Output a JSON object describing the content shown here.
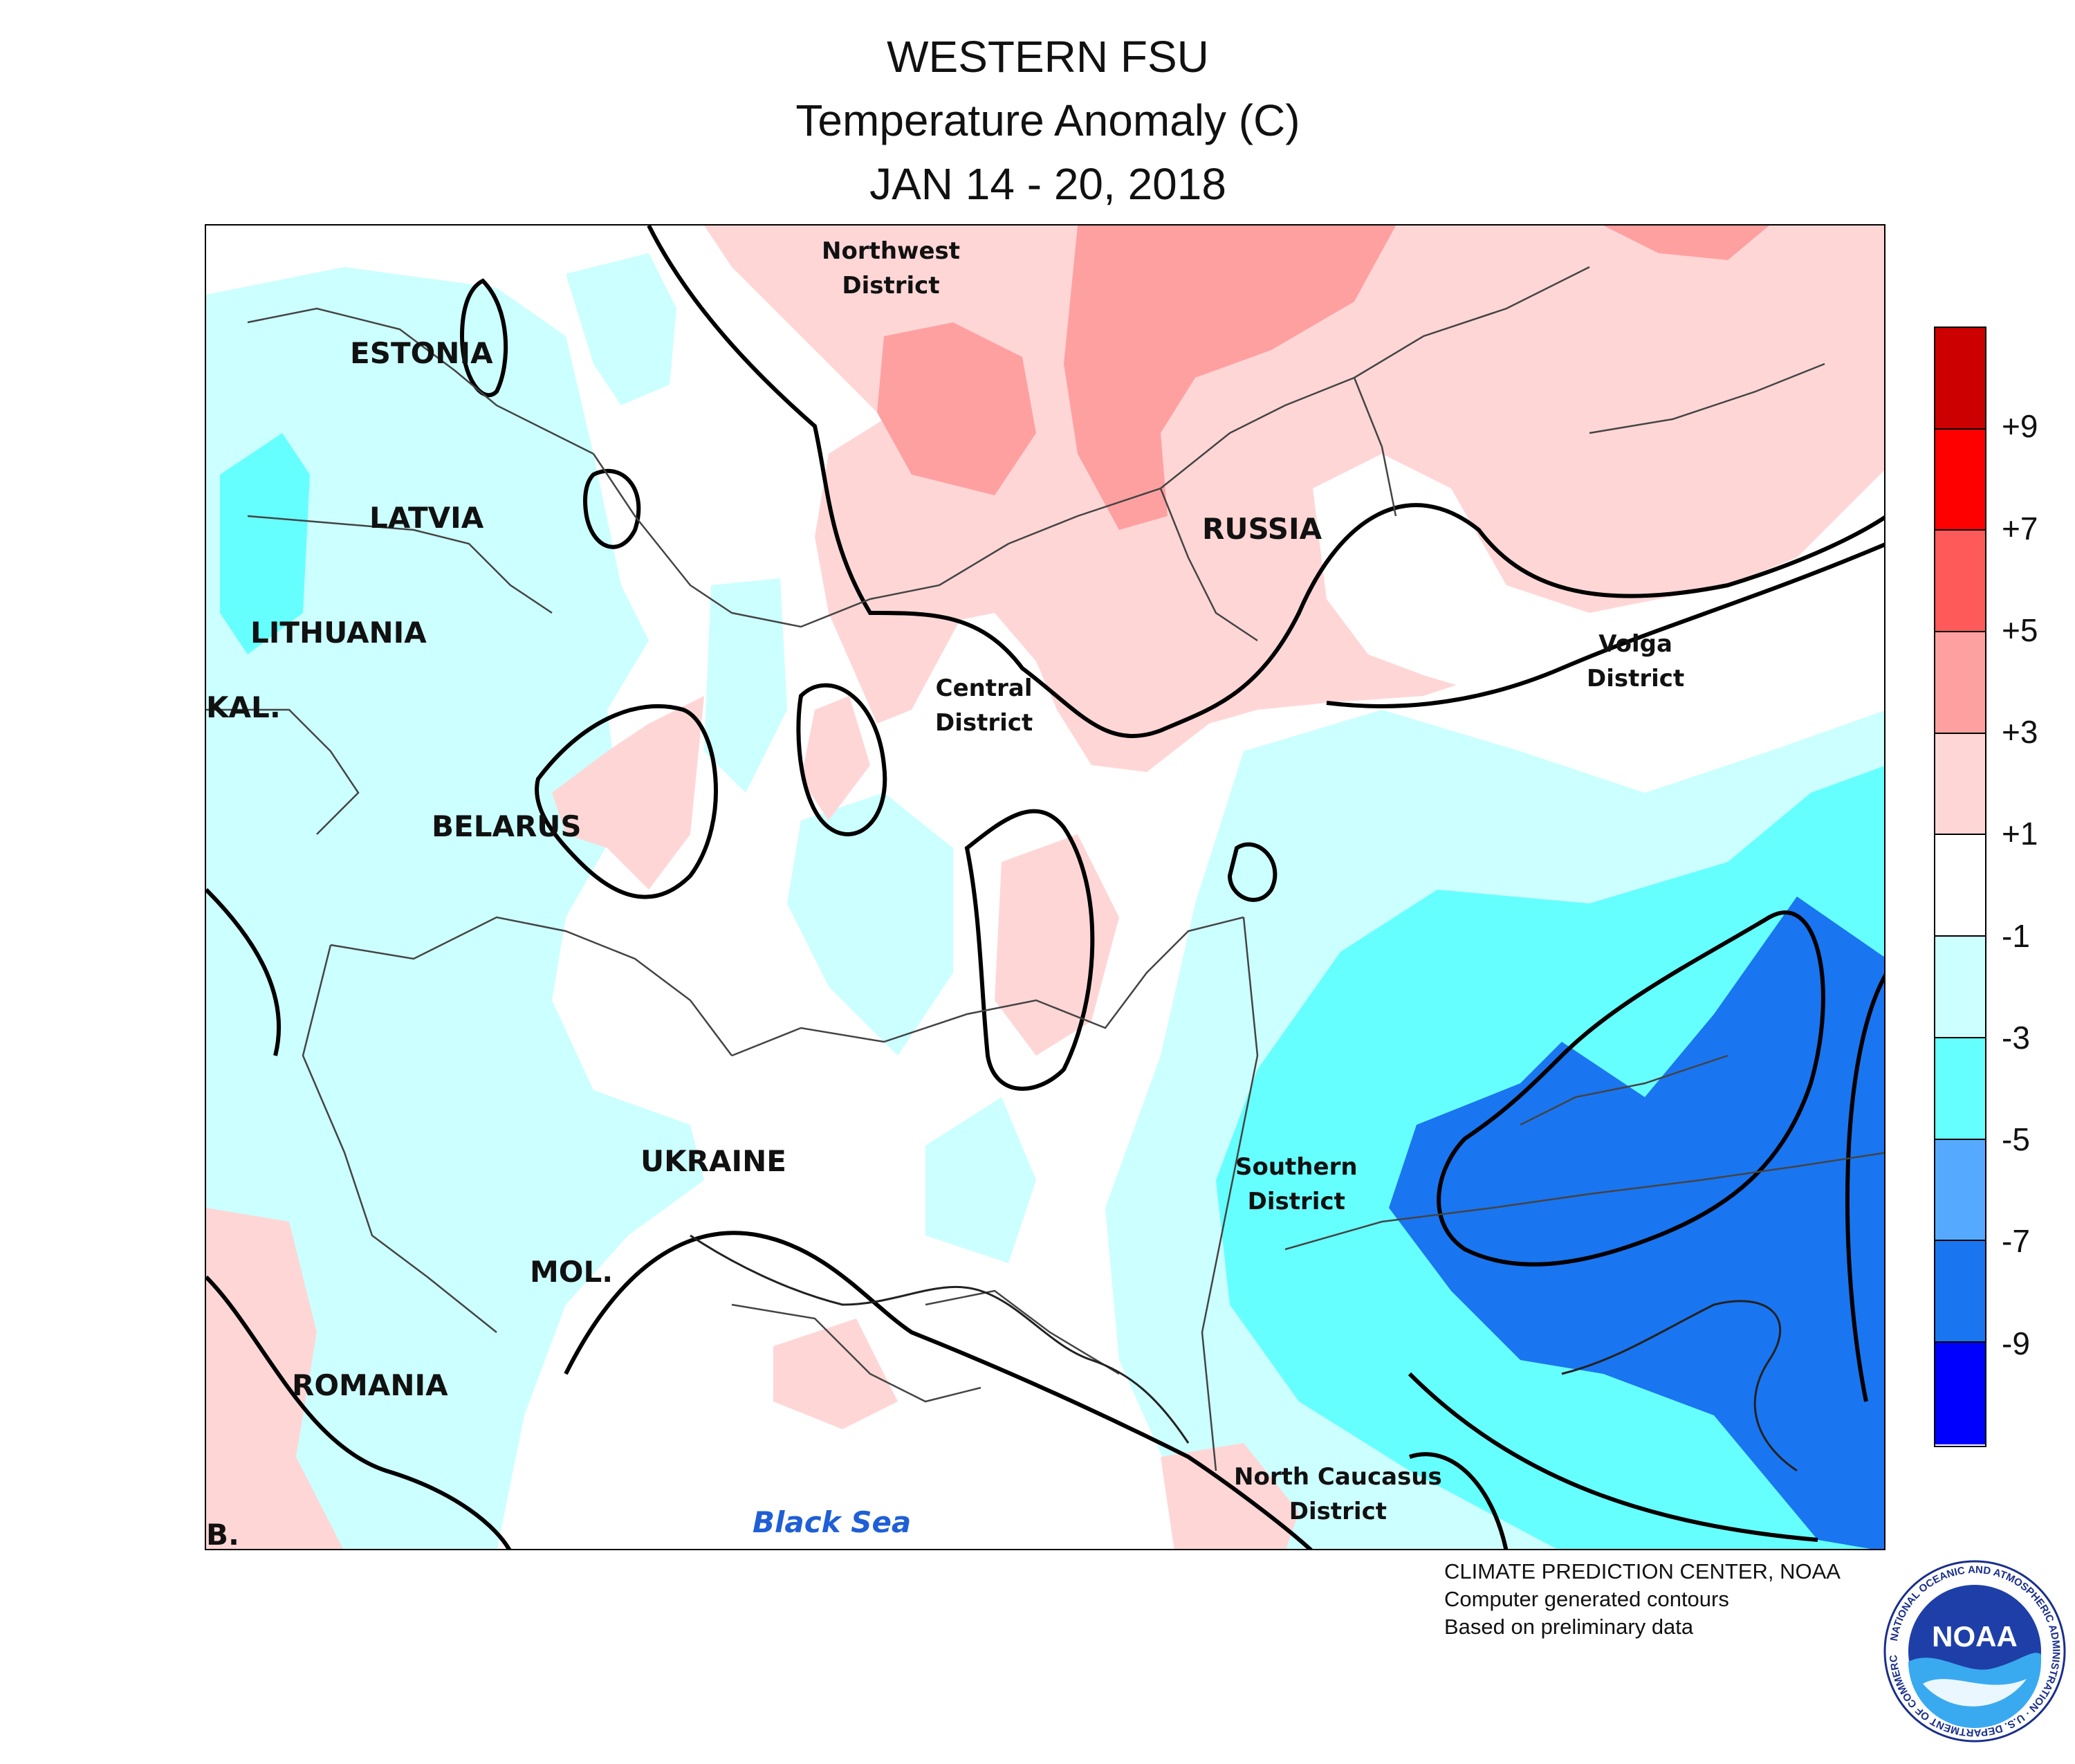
{
  "header": {
    "title": "WESTERN FSU",
    "subtitle": "Temperature Anomaly (C)",
    "period": "JAN 14 - 20, 2018"
  },
  "map": {
    "countries": {
      "estonia": "ESTONIA",
      "latvia": "LATVIA",
      "lithuania": "LITHUANIA",
      "kaliningrad": "KAL.",
      "belarus": "BELARUS",
      "ukraine": "UKRAINE",
      "moldova": "MOL.",
      "romania": "ROMANIA",
      "russia": "RUSSIA",
      "bulgaria": "B."
    },
    "districts": {
      "northwest": [
        "Northwest",
        "District"
      ],
      "central": [
        "Central",
        "District"
      ],
      "volga": [
        "Volga",
        "District"
      ],
      "southern": [
        "Southern",
        "District"
      ],
      "north_caucasus": [
        "North Caucasus",
        "District"
      ]
    },
    "sea": "Black Sea"
  },
  "legend": {
    "colors": [
      "#cc0000",
      "#ff0000",
      "#ff5a5a",
      "#ffa0a0",
      "#ffd6d6",
      "#ffffff",
      "#ccffff",
      "#66ffff",
      "#55aaff",
      "#1a75f0",
      "#0000ff"
    ],
    "ticks": [
      "+9",
      "+7",
      "+5",
      "+3",
      "+1",
      "-1",
      "-3",
      "-5",
      "-7",
      "-9"
    ]
  },
  "credits": {
    "line1": "CLIMATE PREDICTION CENTER, NOAA",
    "line2": "Computer generated contours",
    "line3": "Based on preliminary data"
  },
  "logo": {
    "text": "NOAA",
    "ring_text": "NATIONAL OCEANIC AND ATMOSPHERIC ADMINISTRATION · U.S. DEPARTMENT OF COMMERCE"
  }
}
